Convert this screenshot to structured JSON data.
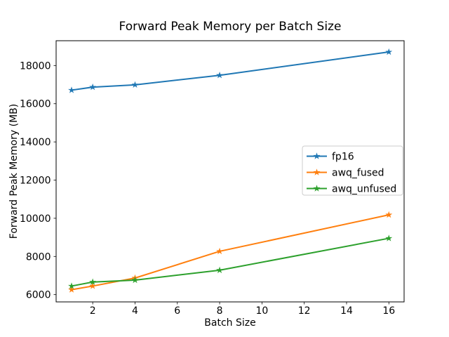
{
  "figure": {
    "background": "#ffffff",
    "axis_color": "#000000",
    "legend_edge_color": "#cccccc"
  },
  "chart_data": {
    "type": "line",
    "title": "Forward Peak Memory per Batch Size",
    "xlabel": "Batch Size",
    "ylabel": "Forward Peak Memory (MB)",
    "x": [
      1,
      2,
      4,
      8,
      16
    ],
    "series": [
      {
        "name": "fp16",
        "color": "#1f77b4",
        "marker": "star",
        "values": [
          16710,
          16870,
          16990,
          17490,
          18710
        ]
      },
      {
        "name": "awq_fused",
        "color": "#ff7f0e",
        "marker": "star",
        "values": [
          6260,
          6450,
          6870,
          8270,
          10180
        ]
      },
      {
        "name": "awq_unfused",
        "color": "#2ca02c",
        "marker": "star",
        "values": [
          6450,
          6660,
          6760,
          7280,
          8950
        ]
      }
    ],
    "xticks": [
      2,
      4,
      6,
      8,
      10,
      12,
      14,
      16
    ],
    "yticks": [
      6000,
      8000,
      10000,
      12000,
      14000,
      16000,
      18000
    ],
    "xlim": [
      0.27,
      16.72
    ],
    "ylim": [
      5620,
      19300
    ],
    "grid": false,
    "legend_position": "center-right"
  }
}
